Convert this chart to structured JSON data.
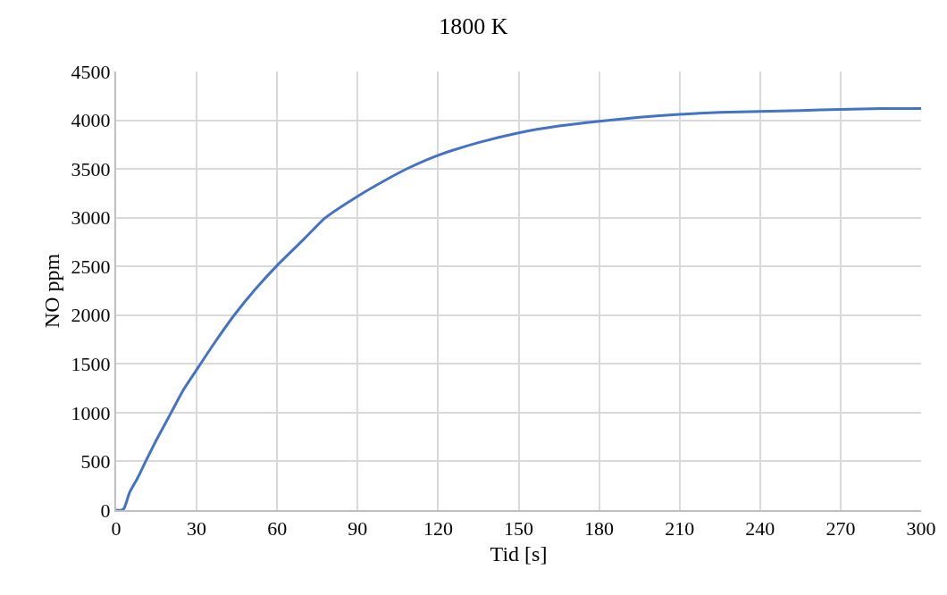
{
  "chart_data": {
    "type": "line",
    "title": "1800 K",
    "xlabel": "Tid [s]",
    "ylabel": "NO ppm",
    "x": [
      0,
      2,
      3,
      5,
      8,
      11,
      15,
      20.5,
      25,
      30,
      37,
      44,
      52,
      60,
      70,
      78,
      90,
      100,
      109,
      120,
      135,
      150,
      165,
      180,
      195,
      210,
      225,
      240,
      255,
      270,
      285,
      300
    ],
    "series": [
      {
        "color": "#4472c4",
        "values": [
          0,
          0,
          20,
          180,
          330,
          500,
          720,
          1000,
          1230,
          1440,
          1730,
          2000,
          2270,
          2510,
          2780,
          3000,
          3220,
          3380,
          3510,
          3640,
          3770,
          3870,
          3940,
          3990,
          4030,
          4060,
          4080,
          4090,
          4100,
          4110,
          4120,
          4120
        ]
      }
    ],
    "xlim": [
      0,
      300
    ],
    "xticks": [
      0,
      30,
      60,
      90,
      120,
      150,
      180,
      210,
      240,
      270,
      300
    ],
    "ylim": [
      0,
      4500
    ],
    "yticks": [
      0,
      500,
      1000,
      1500,
      2000,
      2500,
      3000,
      3500,
      4000,
      4500
    ],
    "grid": true,
    "marker": "none",
    "line_style": "solid"
  }
}
